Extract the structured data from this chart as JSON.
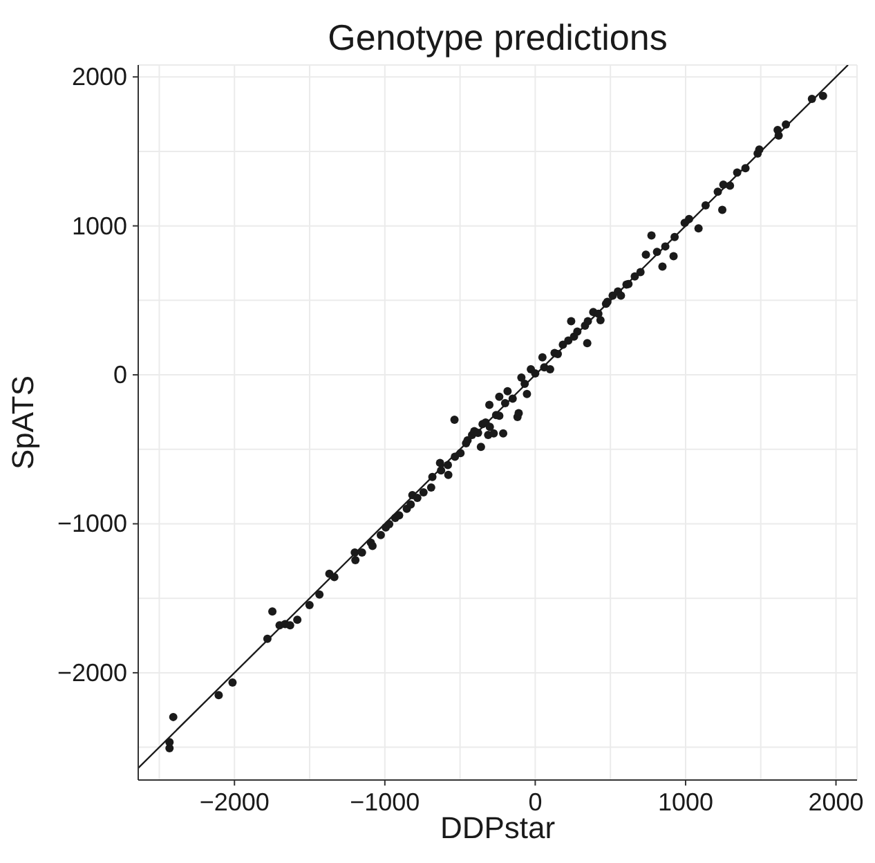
{
  "chart_data": {
    "type": "scatter",
    "title": "Genotype predictions",
    "xlabel": "DDPstar",
    "ylabel": "SpATS",
    "xlim": [
      -2640,
      2140
    ],
    "ylim": [
      -2720,
      2080
    ],
    "xticks": [
      {
        "value": -2500,
        "label": null
      },
      -2000,
      {
        "value": -1500,
        "label": null
      },
      -1000,
      {
        "value": -500,
        "label": null
      },
      0,
      {
        "value": 500,
        "label": null
      },
      1000,
      {
        "value": 1500,
        "label": null
      },
      2000
    ],
    "yticks": [
      {
        "value": -2500,
        "label": null
      },
      -2000,
      {
        "value": -1500,
        "label": null
      },
      -1000,
      {
        "value": -500,
        "label": null
      },
      0,
      {
        "value": 500,
        "label": null
      },
      1000,
      {
        "value": 1500,
        "label": null
      },
      2000
    ],
    "grid": true,
    "series": [
      {
        "marker": "circle",
        "color": "#1a1a1a",
        "x": [
          -2432,
          -2432,
          -2407,
          -2105,
          -2013,
          -1781,
          -1748,
          -1700,
          -1663,
          -1630,
          -1582,
          -1501,
          -1435,
          -1369,
          -1336,
          -1200,
          -1196,
          -1152,
          -1093,
          -1082,
          -1027,
          -994,
          -971,
          -931,
          -905,
          -854,
          -828,
          -817,
          -784,
          -743,
          -692,
          -684,
          -633,
          -626,
          -578,
          -581,
          -537,
          -534,
          -497,
          -460,
          -450,
          -420,
          -405,
          -380,
          -361,
          -350,
          -330,
          -313,
          -302,
          -276,
          -260,
          -239,
          -213,
          -200,
          -150,
          -118,
          -305,
          -239,
          -184,
          -110,
          -70,
          -55,
          -92,
          -29,
          0,
          48,
          60,
          99,
          129,
          150,
          184,
          220,
          239,
          258,
          280,
          346,
          331,
          350,
          386,
          420,
          434,
          471,
          480,
          515,
          550,
          570,
          607,
          620,
          662,
          700,
          736,
          773,
          810,
          846,
          865,
          920,
          927,
          994,
          1023,
          1086,
          1133,
          1214,
          1244,
          1251,
          1295,
          1343,
          1398,
          1479,
          1490,
          1612,
          1619,
          1667,
          1840,
          1914
        ],
        "values": [
          -2506,
          -2466,
          -2297,
          -2150,
          -2066,
          -1772,
          -1589,
          -1681,
          -1673,
          -1681,
          -1644,
          -1545,
          -1475,
          -1336,
          -1358,
          -1193,
          -1244,
          -1193,
          -1127,
          -1149,
          -1075,
          -1024,
          -1002,
          -961,
          -943,
          -899,
          -870,
          -807,
          -826,
          -789,
          -756,
          -686,
          -591,
          -642,
          -672,
          -606,
          -301,
          -550,
          -525,
          -459,
          -440,
          -404,
          -378,
          -390,
          -484,
          -330,
          -320,
          -404,
          -349,
          -393,
          -270,
          -275,
          -393,
          -190,
          -160,
          -283,
          -202,
          -147,
          -110,
          -257,
          -60,
          -128,
          -18,
          37,
          10,
          117,
          50,
          37,
          147,
          140,
          202,
          230,
          360,
          257,
          290,
          213,
          330,
          360,
          422,
          410,
          367,
          477,
          490,
          532,
          560,
          532,
          606,
          610,
          661,
          690,
          807,
          936,
          826,
          727,
          862,
          796,
          925,
          1020,
          1046,
          983,
          1138,
          1229,
          1108,
          1277,
          1270,
          1358,
          1387,
          1486,
          1512,
          1644,
          1607,
          1681,
          1853,
          1872
        ]
      },
      {
        "type": "line",
        "color": "#1a1a1a",
        "x": [
          -2640,
          2080
        ],
        "values": [
          -2640,
          2080
        ]
      }
    ]
  }
}
